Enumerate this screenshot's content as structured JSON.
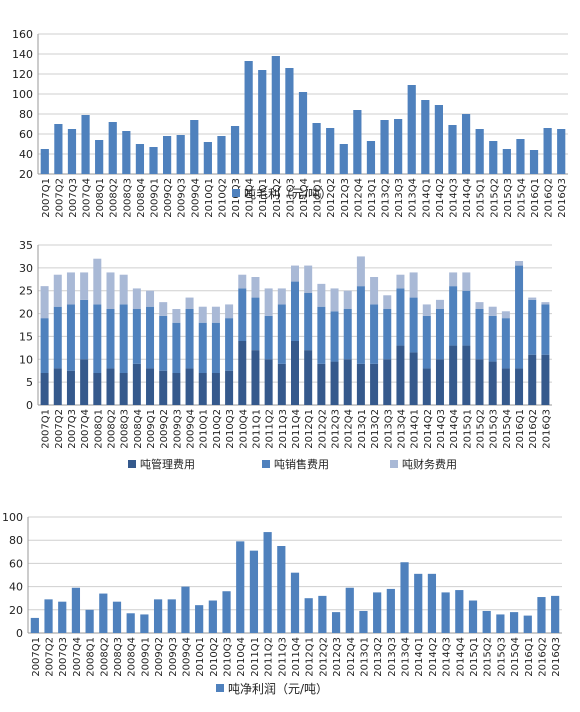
{
  "colors": {
    "bar": "#4f81bd",
    "mgmt": "#35598c",
    "sales": "#4f81bd",
    "fin": "#a9b9d6",
    "grid": "#cfcfcf",
    "axis": "#999999"
  },
  "chart_data": [
    {
      "type": "bar",
      "ylim": [
        20,
        160
      ],
      "yticks": [
        20,
        40,
        60,
        80,
        100,
        120,
        140,
        160
      ],
      "categories": [
        "2007Q1",
        "2007Q2",
        "2007Q3",
        "2007Q4",
        "2008Q1",
        "2008Q2",
        "2008Q3",
        "2008Q4",
        "2009Q1",
        "2009Q2",
        "2009Q3",
        "2009Q4",
        "2010Q1",
        "2010Q2",
        "2010Q3",
        "2010Q4",
        "2011Q1",
        "2011Q2",
        "2011Q3",
        "2011Q4",
        "2012Q1",
        "2012Q2",
        "2012Q3",
        "2012Q4",
        "2013Q1",
        "2013Q2",
        "2013Q3",
        "2013Q4",
        "2014Q1",
        "2014Q2",
        "2014Q3",
        "2014Q4",
        "2015Q1",
        "2015Q2",
        "2015Q3",
        "2015Q4",
        "2016Q1",
        "2016Q2",
        "2016Q3"
      ],
      "series": [
        {
          "name": "吨毛利（元/吨）",
          "values": [
            45,
            70,
            65,
            79,
            54,
            72,
            63,
            50,
            47,
            58,
            59,
            74,
            52,
            58,
            68,
            133,
            124,
            138,
            126,
            102,
            71,
            66,
            50,
            84,
            53,
            74,
            75,
            109,
            94,
            89,
            69,
            80,
            65,
            53,
            45,
            55,
            44,
            66,
            65
          ]
        }
      ],
      "legend": "bottom"
    },
    {
      "type": "bar",
      "stacked": true,
      "ylim": [
        0,
        35
      ],
      "yticks": [
        0,
        5,
        10,
        15,
        20,
        25,
        30,
        35
      ],
      "categories": [
        "2007Q1",
        "2007Q2",
        "2007Q3",
        "2007Q4",
        "2008Q1",
        "2008Q2",
        "2008Q3",
        "2008Q4",
        "2009Q1",
        "2009Q2",
        "2009Q3",
        "2009Q4",
        "2010Q1",
        "2010Q2",
        "2010Q3",
        "2010Q4",
        "2011Q1",
        "2011Q2",
        "2011Q3",
        "2011Q4",
        "2012Q1",
        "2012Q2",
        "2012Q3",
        "2012Q4",
        "2013Q1",
        "2013Q2",
        "2013Q3",
        "2013Q4",
        "2014Q1",
        "2014Q2",
        "2014Q3",
        "2014Q4",
        "2015Q1",
        "2015Q2",
        "2015Q3",
        "2015Q4",
        "2016Q1",
        "2016Q2",
        "2016Q3"
      ],
      "series": [
        {
          "name": "吨管理费用",
          "values": [
            7,
            8,
            7.5,
            10,
            7,
            8,
            7,
            9,
            8,
            7.5,
            7,
            8,
            7,
            7,
            7.5,
            14,
            12,
            10,
            9,
            14,
            12,
            9,
            9.5,
            10,
            9,
            9,
            10,
            13,
            11.5,
            8,
            10,
            13,
            13,
            10,
            9.5,
            8,
            8,
            11,
            11
          ]
        },
        {
          "name": "吨销售费用",
          "values": [
            12,
            13.5,
            14.5,
            13,
            15,
            13,
            15,
            12,
            13.5,
            12,
            11,
            13,
            11,
            11,
            11.5,
            11.5,
            11.5,
            9.5,
            13,
            13,
            12.5,
            12.5,
            11,
            11,
            17,
            13,
            11,
            12.5,
            12,
            11.5,
            11,
            13,
            12,
            11,
            10,
            11,
            22.5,
            12,
            11
          ]
        },
        {
          "name": "吨财务费用",
          "values": [
            7,
            7,
            7,
            6,
            10,
            8,
            6.5,
            4.5,
            3.5,
            3,
            3,
            2.5,
            3.5,
            3.5,
            3,
            3,
            4.5,
            6,
            3.5,
            3.5,
            6,
            5,
            5,
            4,
            6.5,
            6,
            3,
            3,
            5.5,
            2.5,
            2,
            3,
            4,
            1.5,
            2,
            1.5,
            1,
            0.5,
            0.5
          ]
        }
      ],
      "legend": "bottom"
    },
    {
      "type": "bar",
      "ylim": [
        0,
        100
      ],
      "yticks": [
        0,
        20,
        40,
        60,
        80,
        100
      ],
      "categories": [
        "2007Q1",
        "2007Q2",
        "2007Q3",
        "2007Q4",
        "2008Q1",
        "2008Q2",
        "2008Q3",
        "2008Q4",
        "2009Q1",
        "2009Q2",
        "2009Q3",
        "2009Q4",
        "2010Q1",
        "2010Q2",
        "2010Q3",
        "2010Q4",
        "2011Q1",
        "2011Q2",
        "2011Q3",
        "2011Q4",
        "2012Q1",
        "2012Q2",
        "2012Q3",
        "2012Q4",
        "2013Q1",
        "2013Q2",
        "2013Q3",
        "2013Q4",
        "2014Q1",
        "2014Q2",
        "2014Q3",
        "2014Q4",
        "2015Q1",
        "2015Q2",
        "2015Q3",
        "2015Q4",
        "2016Q1",
        "2016Q2",
        "2016Q3"
      ],
      "series": [
        {
          "name": "吨净利润（元/吨）",
          "values": [
            13,
            29,
            27,
            39,
            20,
            34,
            27,
            17,
            16,
            29,
            29,
            40,
            24,
            28,
            36,
            79,
            71,
            87,
            75,
            52,
            30,
            32,
            18,
            39,
            19,
            35,
            38,
            61,
            51,
            51,
            35,
            37,
            28,
            19,
            16,
            18,
            15,
            31,
            32
          ]
        }
      ],
      "legend": "bottom"
    }
  ]
}
